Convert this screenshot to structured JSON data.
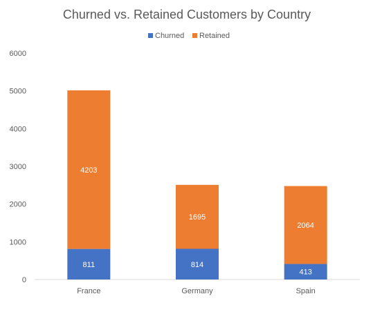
{
  "chart_data": {
    "type": "bar",
    "stacked": true,
    "title": "Churned vs. Retained Customers by Country",
    "categories": [
      "France",
      "Germany",
      "Spain"
    ],
    "series": [
      {
        "name": "Churned",
        "values": [
          811,
          814,
          413
        ],
        "color": "#4472C4"
      },
      {
        "name": "Retained",
        "values": [
          4203,
          1695,
          2064
        ],
        "color": "#ED7D31"
      }
    ],
    "ylim": [
      0,
      6000
    ],
    "yticks": [
      0,
      1000,
      2000,
      3000,
      4000,
      5000,
      6000
    ],
    "legend_position": "top",
    "grid": false
  }
}
